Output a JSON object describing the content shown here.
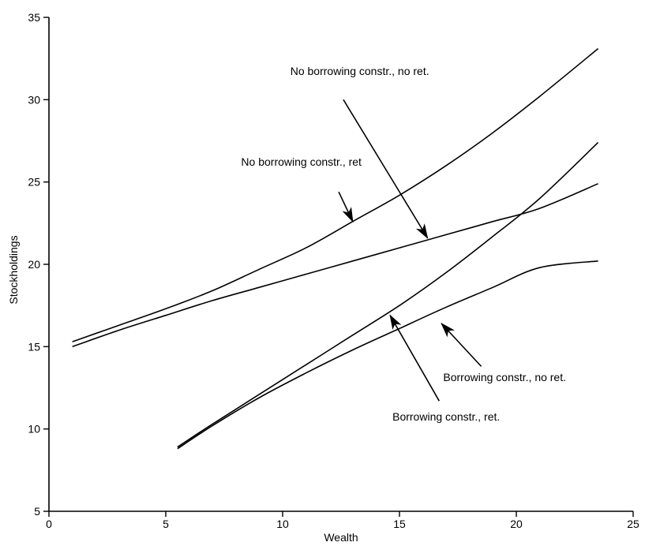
{
  "chart_data": {
    "type": "line",
    "xlabel": "Wealth",
    "ylabel": "Stockholdings",
    "xlim": [
      0,
      25
    ],
    "ylim": [
      5,
      35
    ],
    "xticks": [
      0,
      5,
      10,
      15,
      20,
      25
    ],
    "yticks": [
      5,
      10,
      15,
      20,
      25,
      30,
      35
    ],
    "grid": false,
    "series": [
      {
        "name": "No borrowing constr., no ret.",
        "x": [
          1,
          3,
          5,
          7,
          9,
          11,
          13,
          15,
          17,
          19,
          21,
          23.5
        ],
        "y": [
          15.3,
          16.3,
          17.3,
          18.4,
          19.7,
          21.0,
          22.6,
          24.2,
          26.0,
          28.0,
          30.2,
          33.1
        ]
      },
      {
        "name": "No borrowing constr., ret",
        "x": [
          1,
          3,
          5,
          7,
          9,
          11,
          13,
          15,
          17,
          19,
          21,
          23.5
        ],
        "y": [
          15.0,
          16.0,
          16.9,
          17.8,
          18.6,
          19.4,
          20.2,
          21.0,
          21.8,
          22.6,
          23.4,
          24.9
        ]
      },
      {
        "name": "Borrowing constr., ret.",
        "x": [
          5.5,
          7,
          9,
          11,
          13,
          15,
          17,
          19,
          21,
          23.5
        ],
        "y": [
          8.9,
          10.3,
          12.1,
          13.9,
          15.7,
          17.5,
          19.5,
          21.7,
          24.0,
          27.4
        ]
      },
      {
        "name": "Borrowing constr., no ret.",
        "x": [
          5.5,
          7,
          9,
          11,
          13,
          15,
          17,
          19,
          21,
          23.5
        ],
        "y": [
          8.8,
          10.2,
          11.9,
          13.4,
          14.8,
          16.1,
          17.4,
          18.6,
          19.8,
          20.2
        ]
      }
    ],
    "annotations": [
      {
        "text": "No borrowing constr., no ret.",
        "text_at": [
          13.3,
          31.5
        ],
        "arrow_from": [
          12.6,
          30.0
        ],
        "arrow_to": [
          16.2,
          21.6
        ]
      },
      {
        "text": "No borrowing constr., ret",
        "text_at": [
          10.8,
          26.0
        ],
        "arrow_from": [
          12.4,
          24.4
        ],
        "arrow_to": [
          13.0,
          22.6
        ]
      },
      {
        "text": "Borrowing constr., no ret.",
        "text_at": [
          19.5,
          12.9
        ],
        "arrow_from": [
          18.5,
          13.8
        ],
        "arrow_to": [
          16.8,
          16.4
        ]
      },
      {
        "text": "Borrowing constr., ret.",
        "text_at": [
          17.0,
          10.5
        ],
        "arrow_from": [
          16.7,
          11.7
        ],
        "arrow_to": [
          14.6,
          16.9
        ]
      }
    ]
  }
}
